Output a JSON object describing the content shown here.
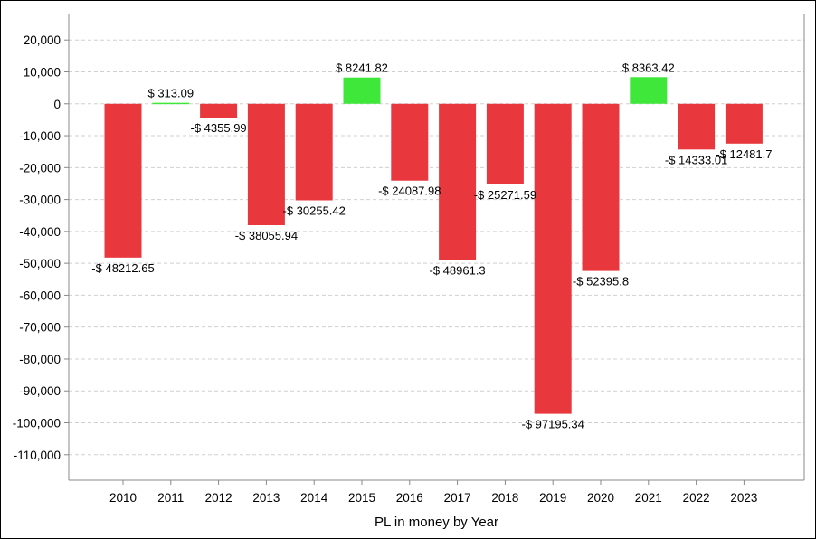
{
  "chart_data": {
    "type": "bar",
    "xlabel": "PL in money by Year",
    "ylabel": "",
    "categories": [
      "2010",
      "2011",
      "2012",
      "2013",
      "2014",
      "2015",
      "2016",
      "2017",
      "2018",
      "2019",
      "2020",
      "2021",
      "2022",
      "2023"
    ],
    "values": [
      -48212.65,
      313.09,
      -4355.99,
      -38055.94,
      -30255.42,
      8241.82,
      -24087.98,
      -48961.3,
      -25271.59,
      -97195.34,
      -52395.8,
      8363.42,
      -14333.01,
      -12481.7
    ],
    "labels": [
      "-$ 48212.65",
      "$ 313.09",
      "-$ 4355.99",
      "-$ 38055.94",
      "-$ 30255.42",
      "$ 8241.82",
      "-$ 24087.98",
      "-$ 48961.3",
      "-$ 25271.59",
      "-$ 97195.34",
      "-$ 52395.8",
      "$ 8363.42",
      "-$ 14333.01",
      "-$ 12481.7"
    ],
    "ylim": [
      -118000,
      28000
    ],
    "yticks": [
      20000,
      10000,
      0,
      -10000,
      -20000,
      -30000,
      -40000,
      -50000,
      -60000,
      -70000,
      -80000,
      -90000,
      -100000,
      -110000
    ],
    "ytick_labels": [
      "20,000",
      "10,000",
      "0",
      "-10,000",
      "-20,000",
      "-30,000",
      "-40,000",
      "-50,000",
      "-60,000",
      "-70,000",
      "-80,000",
      "-90,000",
      "-100,000",
      "-110,000"
    ],
    "grid": true,
    "colors": {
      "positive": "#3ee73a",
      "negative": "#e8373d",
      "grid": "#d0d0d0",
      "axis": "#888888"
    }
  }
}
